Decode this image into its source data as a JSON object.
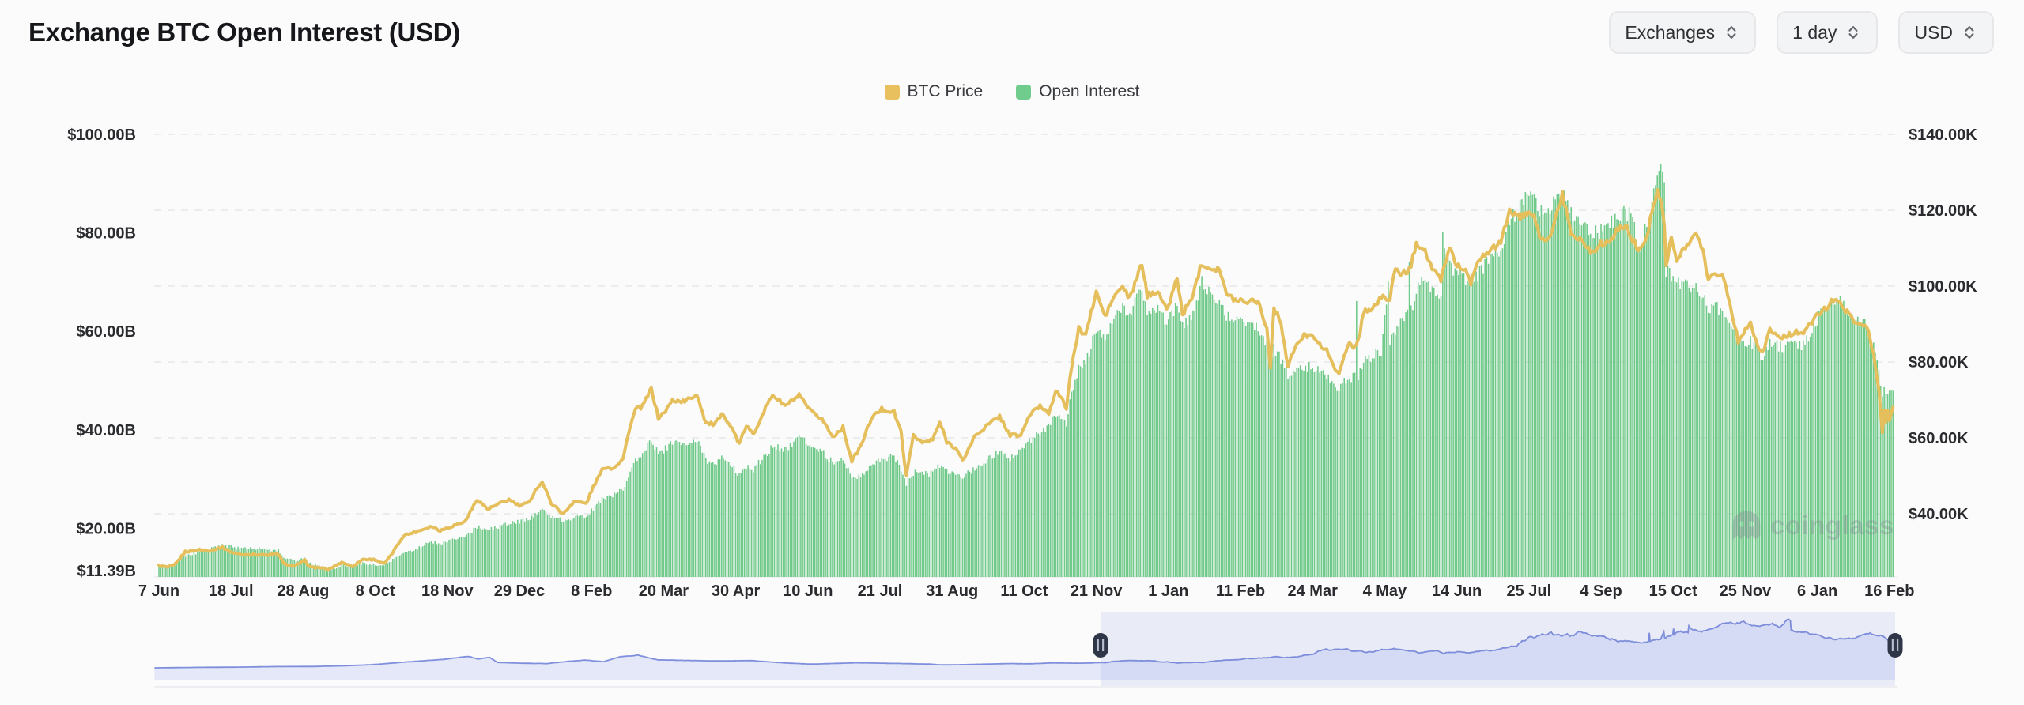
{
  "header": {
    "title": "Exchange BTC Open Interest (USD)",
    "controls": [
      {
        "id": "exchanges",
        "label": "Exchanges"
      },
      {
        "id": "interval",
        "label": "1 day"
      },
      {
        "id": "currency",
        "label": "USD"
      }
    ]
  },
  "legend": [
    {
      "label": "BTC Price",
      "color": "#E8C05E"
    },
    {
      "label": "Open Interest",
      "color": "#70CC8C"
    }
  ],
  "watermark": {
    "text": "coinglass"
  },
  "colors": {
    "background": "#FBFBFC",
    "bars": "#6FC988",
    "price_line": "#E6BF5D",
    "grid": "#E8E8EA",
    "tick_text": "#2A2B2E",
    "navigator_line": "#6B7ED6",
    "navigator_fill": "#DEE3F6",
    "navigator_selection": "#7387DC",
    "navigator_handle": "#2F3648"
  },
  "chart_data": {
    "type": "mixed",
    "title": "Exchange BTC Open Interest (USD)",
    "subtype": [
      "column",
      "line"
    ],
    "grid": "horizontal-dashed",
    "legend_position": "top-center",
    "x_axis": {
      "type": "time",
      "range_start": "2023-06-07",
      "range_end": "2026-02-17",
      "tick_interval_days": 41,
      "tick_labels": [
        "7 Jun",
        "18 Jul",
        "28 Aug",
        "8 Oct",
        "18 Nov",
        "29 Dec",
        "8 Feb",
        "20 Mar",
        "30 Apr",
        "10 Jun",
        "21 Jul",
        "31 Aug",
        "11 Oct",
        "21 Nov",
        "1 Jan",
        "11 Feb",
        "24 Mar",
        "4 May",
        "14 Jun",
        "25 Jul",
        "4 Sep",
        "15 Oct",
        "25 Nov",
        "6 Jan",
        "16 Feb"
      ]
    },
    "y_left": {
      "series": "Open Interest",
      "unit": "billion USD",
      "tick_labels": [
        "$100.00B",
        "$80.00B",
        "$60.00B",
        "$40.00B",
        "$20.00B",
        "$11.39B"
      ],
      "tick_values": [
        100,
        80,
        60,
        40,
        20,
        11.39
      ]
    },
    "y_right": {
      "series": "BTC Price",
      "unit": "thousand USD",
      "tick_labels": [
        "$140.00K",
        "$120.00K",
        "$100.00K",
        "$80.00K",
        "$60.00K",
        "$40.00K"
      ],
      "tick_values": [
        140,
        120,
        100,
        80,
        60,
        40
      ]
    },
    "columns": [
      "date",
      "btc_price_thousand_usd",
      "open_interest_billion_usd"
    ],
    "points": [
      [
        "2023-06-07",
        26.3,
        12.3
      ],
      [
        "2023-06-12",
        25.9,
        12.0
      ],
      [
        "2023-06-16",
        26.5,
        12.6
      ],
      [
        "2023-06-22",
        30.0,
        14.5
      ],
      [
        "2023-06-30",
        30.5,
        15.0
      ],
      [
        "2023-07-06",
        30.3,
        15.8
      ],
      [
        "2023-07-13",
        31.2,
        16.5
      ],
      [
        "2023-07-18",
        29.9,
        16.2
      ],
      [
        "2023-07-24",
        29.2,
        15.8
      ],
      [
        "2023-07-31",
        29.3,
        15.9
      ],
      [
        "2023-08-07",
        29.1,
        15.7
      ],
      [
        "2023-08-14",
        29.4,
        15.5
      ],
      [
        "2023-08-17",
        26.8,
        14.0
      ],
      [
        "2023-08-23",
        26.1,
        13.4
      ],
      [
        "2023-08-29",
        27.7,
        13.8
      ],
      [
        "2023-09-01",
        25.9,
        12.8
      ],
      [
        "2023-09-07",
        25.8,
        12.2
      ],
      [
        "2023-09-11",
        25.2,
        11.39
      ],
      [
        "2023-09-19",
        27.2,
        12.4
      ],
      [
        "2023-09-25",
        26.1,
        12.1
      ],
      [
        "2023-10-01",
        28.0,
        12.9
      ],
      [
        "2023-10-08",
        27.9,
        12.6
      ],
      [
        "2023-10-13",
        26.8,
        12.4
      ],
      [
        "2023-10-16",
        28.4,
        13.1
      ],
      [
        "2023-10-24",
        34.2,
        14.8
      ],
      [
        "2023-11-01",
        35.4,
        15.9
      ],
      [
        "2023-11-09",
        36.7,
        17.2
      ],
      [
        "2023-11-14",
        35.6,
        16.9
      ],
      [
        "2023-11-21",
        36.8,
        17.7
      ],
      [
        "2023-11-28",
        37.9,
        18.1
      ],
      [
        "2023-12-05",
        43.8,
        20.3
      ],
      [
        "2023-12-11",
        41.2,
        19.6
      ],
      [
        "2023-12-18",
        42.7,
        20.4
      ],
      [
        "2023-12-23",
        43.7,
        21.0
      ],
      [
        "2023-12-29",
        42.1,
        21.3
      ],
      [
        "2024-01-03",
        42.8,
        21.8
      ],
      [
        "2024-01-08",
        46.9,
        23.0
      ],
      [
        "2024-01-11",
        48.3,
        23.6
      ],
      [
        "2024-01-16",
        42.9,
        22.4
      ],
      [
        "2024-01-23",
        39.9,
        21.6
      ],
      [
        "2024-01-29",
        43.3,
        22.3
      ],
      [
        "2024-02-05",
        42.7,
        22.5
      ],
      [
        "2024-02-09",
        47.1,
        24.0
      ],
      [
        "2024-02-15",
        52.3,
        26.2
      ],
      [
        "2024-02-20",
        52.0,
        26.5
      ],
      [
        "2024-02-26",
        54.5,
        27.8
      ],
      [
        "2024-02-29",
        61.4,
        30.8
      ],
      [
        "2024-03-04",
        67.5,
        33.8
      ],
      [
        "2024-03-08",
        68.3,
        35.5
      ],
      [
        "2024-03-13",
        73.0,
        38.0
      ],
      [
        "2024-03-17",
        65.3,
        35.0
      ],
      [
        "2024-03-21",
        67.0,
        36.2
      ],
      [
        "2024-03-25",
        69.9,
        37.6
      ],
      [
        "2024-04-01",
        69.6,
        37.0
      ],
      [
        "2024-04-08",
        71.5,
        37.8
      ],
      [
        "2024-04-13",
        63.9,
        33.8
      ],
      [
        "2024-04-18",
        63.5,
        33.2
      ],
      [
        "2024-04-23",
        66.4,
        34.5
      ],
      [
        "2024-04-30",
        60.6,
        31.8
      ],
      [
        "2024-05-02",
        58.3,
        30.8
      ],
      [
        "2024-05-06",
        63.2,
        32.6
      ],
      [
        "2024-05-10",
        60.8,
        32.0
      ],
      [
        "2024-05-15",
        66.2,
        34.0
      ],
      [
        "2024-05-21",
        71.4,
        36.8
      ],
      [
        "2024-05-28",
        68.4,
        36.0
      ],
      [
        "2024-06-05",
        71.1,
        38.4
      ],
      [
        "2024-06-11",
        67.3,
        36.8
      ],
      [
        "2024-06-14",
        66.0,
        36.3
      ],
      [
        "2024-06-18",
        65.1,
        35.6
      ],
      [
        "2024-06-24",
        60.3,
        33.4
      ],
      [
        "2024-06-30",
        62.7,
        33.8
      ],
      [
        "2024-07-05",
        53.9,
        30.2
      ],
      [
        "2024-07-10",
        57.7,
        30.8
      ],
      [
        "2024-07-16",
        65.1,
        32.8
      ],
      [
        "2024-07-22",
        67.6,
        34.0
      ],
      [
        "2024-07-29",
        66.8,
        34.4
      ],
      [
        "2024-08-02",
        61.5,
        32.2
      ],
      [
        "2024-08-05",
        49.8,
        29.0
      ],
      [
        "2024-08-09",
        60.9,
        31.3
      ],
      [
        "2024-08-14",
        58.7,
        30.9
      ],
      [
        "2024-08-20",
        59.5,
        31.2
      ],
      [
        "2024-08-24",
        64.1,
        32.9
      ],
      [
        "2024-08-28",
        59.0,
        31.5
      ],
      [
        "2024-09-02",
        57.4,
        31.1
      ],
      [
        "2024-09-06",
        53.9,
        30.3
      ],
      [
        "2024-09-13",
        60.5,
        32.2
      ],
      [
        "2024-09-19",
        62.9,
        33.6
      ],
      [
        "2024-09-27",
        65.7,
        35.4
      ],
      [
        "2024-10-03",
        60.7,
        34.2
      ],
      [
        "2024-10-09",
        60.6,
        35.5
      ],
      [
        "2024-10-14",
        66.0,
        37.5
      ],
      [
        "2024-10-20",
        68.4,
        39.5
      ],
      [
        "2024-10-25",
        66.6,
        40.5
      ],
      [
        "2024-10-29",
        72.7,
        43.5
      ],
      [
        "2024-11-04",
        68.0,
        41.5
      ],
      [
        "2024-11-06",
        75.9,
        45.5
      ],
      [
        "2024-11-11",
        88.7,
        52.5
      ],
      [
        "2024-11-15",
        87.3,
        53.5
      ],
      [
        "2024-11-21",
        98.4,
        60.8
      ],
      [
        "2024-11-26",
        91.9,
        58.2
      ],
      [
        "2024-12-01",
        97.2,
        61.8
      ],
      [
        "2024-12-06",
        99.9,
        64.8
      ],
      [
        "2024-12-10",
        96.6,
        63.2
      ],
      [
        "2024-12-17",
        106.0,
        68.8
      ],
      [
        "2024-12-20",
        97.4,
        64.0
      ],
      [
        "2024-12-26",
        99.0,
        64.8
      ],
      [
        "2024-12-31",
        93.4,
        61.2
      ],
      [
        "2025-01-06",
        102.2,
        66.0
      ],
      [
        "2025-01-09",
        92.5,
        61.6
      ],
      [
        "2025-01-14",
        96.5,
        62.5
      ],
      [
        "2025-01-20",
        106.2,
        70.0
      ],
      [
        "2025-01-25",
        104.7,
        67.5
      ],
      [
        "2025-01-30",
        104.7,
        66.8
      ],
      [
        "2025-02-03",
        97.7,
        63.2
      ],
      [
        "2025-02-08",
        96.5,
        62.6
      ],
      [
        "2025-02-14",
        96.1,
        62.0
      ],
      [
        "2025-02-21",
        96.2,
        61.2
      ],
      [
        "2025-02-26",
        88.6,
        57.2
      ],
      [
        "2025-02-28",
        79.0,
        54.0
      ],
      [
        "2025-03-02",
        94.2,
        56.5
      ],
      [
        "2025-03-06",
        90.6,
        54.5
      ],
      [
        "2025-03-10",
        78.6,
        51.0
      ],
      [
        "2025-03-14",
        83.9,
        52.0
      ],
      [
        "2025-03-19",
        86.8,
        52.5
      ],
      [
        "2025-03-24",
        87.5,
        53.0
      ],
      [
        "2025-03-28",
        84.4,
        51.5
      ],
      [
        "2025-04-02",
        82.5,
        50.5
      ],
      [
        "2025-04-06",
        78.2,
        49.0
      ],
      [
        "2025-04-08",
        76.3,
        48.2
      ],
      [
        "2025-04-13",
        85.0,
        50.5
      ],
      [
        "2025-04-17",
        84.0,
        50.8
      ],
      [
        "2025-04-18",
        84.5,
        67.0
      ],
      [
        "2025-04-19",
        85.5,
        51.0
      ],
      [
        "2025-04-22",
        93.4,
        54.0
      ],
      [
        "2025-04-27",
        94.0,
        55.0
      ],
      [
        "2025-05-02",
        96.9,
        56.0
      ],
      [
        "2025-05-06",
        97.0,
        70.0
      ],
      [
        "2025-05-07",
        97.0,
        58.0
      ],
      [
        "2025-05-10",
        104.1,
        60.0
      ],
      [
        "2025-05-14",
        103.3,
        62.0
      ],
      [
        "2025-05-17",
        104.0,
        63.5
      ],
      [
        "2025-05-18",
        104.2,
        75.0
      ],
      [
        "2025-05-19",
        105.5,
        64.0
      ],
      [
        "2025-05-22",
        111.7,
        69.0
      ],
      [
        "2025-05-27",
        109.2,
        70.5
      ],
      [
        "2025-05-31",
        104.5,
        68.0
      ],
      [
        "2025-06-05",
        101.5,
        68.0
      ],
      [
        "2025-06-06",
        103.9,
        80.0
      ],
      [
        "2025-06-10",
        110.2,
        73.0
      ],
      [
        "2025-06-14",
        105.4,
        72.5
      ],
      [
        "2025-06-18",
        104.8,
        71.0
      ],
      [
        "2025-06-22",
        100.9,
        70.0
      ],
      [
        "2025-06-27",
        107.0,
        72.0
      ],
      [
        "2025-07-03",
        109.6,
        75.0
      ],
      [
        "2025-07-09",
        111.2,
        77.0
      ],
      [
        "2025-07-14",
        120.5,
        82.5
      ],
      [
        "2025-07-18",
        118.0,
        84.5
      ],
      [
        "2025-07-23",
        118.8,
        87.0
      ],
      [
        "2025-07-28",
        118.2,
        87.0
      ],
      [
        "2025-08-01",
        112.0,
        84.5
      ],
      [
        "2025-08-06",
        113.0,
        85.5
      ],
      [
        "2025-08-13",
        124.0,
        88.0
      ],
      [
        "2025-08-18",
        114.0,
        84.0
      ],
      [
        "2025-08-23",
        112.5,
        82.0
      ],
      [
        "2025-08-29",
        109.0,
        79.5
      ],
      [
        "2025-09-04",
        111.0,
        80.5
      ],
      [
        "2025-09-09",
        112.0,
        82.0
      ],
      [
        "2025-09-13",
        114.5,
        83.0
      ],
      [
        "2025-09-18",
        116.0,
        85.0
      ],
      [
        "2025-09-22",
        112.0,
        82.0
      ],
      [
        "2025-09-26",
        109.5,
        77.5
      ],
      [
        "2025-09-30",
        113.0,
        81.0
      ],
      [
        "2025-10-03",
        119.5,
        87.0
      ],
      [
        "2025-10-06",
        125.5,
        92.0
      ],
      [
        "2025-10-08",
        123.5,
        94.0
      ],
      [
        "2025-10-10",
        116.0,
        90.0
      ],
      [
        "2025-10-11",
        105.0,
        72.5
      ],
      [
        "2025-10-14",
        113.5,
        71.0
      ],
      [
        "2025-10-17",
        106.5,
        69.5
      ],
      [
        "2025-10-21",
        110.0,
        69.5
      ],
      [
        "2025-10-24",
        110.5,
        69.0
      ],
      [
        "2025-10-27",
        114.0,
        69.5
      ],
      [
        "2025-11-01",
        110.0,
        67.0
      ],
      [
        "2025-11-04",
        101.5,
        64.5
      ],
      [
        "2025-11-08",
        103.5,
        65.0
      ],
      [
        "2025-11-12",
        103.0,
        64.0
      ],
      [
        "2025-11-16",
        96.0,
        62.0
      ],
      [
        "2025-11-21",
        85.5,
        59.0
      ],
      [
        "2025-11-24",
        88.0,
        58.0
      ],
      [
        "2025-11-28",
        90.5,
        58.0
      ],
      [
        "2025-12-02",
        84.5,
        56.0
      ],
      [
        "2025-12-05",
        82.5,
        55.0
      ],
      [
        "2025-12-09",
        88.5,
        57.5
      ],
      [
        "2025-12-13",
        87.0,
        57.0
      ],
      [
        "2025-12-18",
        86.5,
        56.5
      ],
      [
        "2025-12-23",
        88.0,
        57.5
      ],
      [
        "2025-12-28",
        87.5,
        57.0
      ],
      [
        "2026-01-02",
        90.5,
        60.0
      ],
      [
        "2026-01-06",
        93.0,
        63.0
      ],
      [
        "2026-01-10",
        94.0,
        64.5
      ],
      [
        "2026-01-14",
        96.5,
        66.0
      ],
      [
        "2026-01-17",
        96.0,
        67.0
      ],
      [
        "2026-01-21",
        93.5,
        64.5
      ],
      [
        "2026-01-26",
        91.0,
        63.0
      ],
      [
        "2026-01-31",
        90.0,
        62.0
      ],
      [
        "2026-02-03",
        88.0,
        60.5
      ],
      [
        "2026-02-06",
        82.0,
        57.0
      ],
      [
        "2026-02-09",
        73.0,
        52.0
      ],
      [
        "2026-02-11",
        61.0,
        47.0
      ],
      [
        "2026-02-12",
        67.0,
        48.0
      ],
      [
        "2026-02-13",
        64.0,
        47.5
      ],
      [
        "2026-02-14",
        67.5,
        48.0
      ],
      [
        "2026-02-15",
        65.0,
        47.7
      ],
      [
        "2026-02-17",
        68.5,
        48.5
      ]
    ],
    "navigator": {
      "metric": "open_interest_billion_usd",
      "window_start": "2023-06-07",
      "window_end": "2026-02-17",
      "history_points": [
        [
          "2020-03-20",
          2.5
        ],
        [
          "2020-04-15",
          2.9
        ],
        [
          "2020-05-20",
          3.4
        ],
        [
          "2020-07-01",
          3.8
        ],
        [
          "2020-08-15",
          4.8
        ],
        [
          "2020-10-01",
          5.0
        ],
        [
          "2020-11-15",
          6.5
        ],
        [
          "2020-12-15",
          8.5
        ],
        [
          "2021-01-10",
          11.5
        ],
        [
          "2021-02-10",
          15.0
        ],
        [
          "2021-03-15",
          18.5
        ],
        [
          "2021-04-13",
          24.0
        ],
        [
          "2021-04-25",
          19.0
        ],
        [
          "2021-05-10",
          22.0
        ],
        [
          "2021-05-20",
          12.5
        ],
        [
          "2021-06-20",
          11.0
        ],
        [
          "2021-07-20",
          10.5
        ],
        [
          "2021-08-15",
          14.5
        ],
        [
          "2021-09-06",
          17.0
        ],
        [
          "2021-09-28",
          14.0
        ],
        [
          "2021-10-20",
          23.5
        ],
        [
          "2021-11-10",
          26.0
        ],
        [
          "2021-12-04",
          17.5
        ],
        [
          "2022-01-05",
          16.5
        ],
        [
          "2022-02-10",
          15.5
        ],
        [
          "2022-04-01",
          16.0
        ],
        [
          "2022-05-12",
          11.5
        ],
        [
          "2022-06-14",
          9.5
        ],
        [
          "2022-08-10",
          12.0
        ],
        [
          "2022-09-15",
          11.0
        ],
        [
          "2022-11-08",
          9.5
        ],
        [
          "2022-11-22",
          8.0
        ],
        [
          "2022-12-20",
          8.5
        ],
        [
          "2023-01-15",
          9.5
        ],
        [
          "2023-02-15",
          10.5
        ],
        [
          "2023-03-10",
          10.0
        ],
        [
          "2023-04-10",
          11.8
        ],
        [
          "2023-05-10",
          11.2
        ],
        [
          "2023-05-25",
          11.6
        ]
      ]
    }
  }
}
